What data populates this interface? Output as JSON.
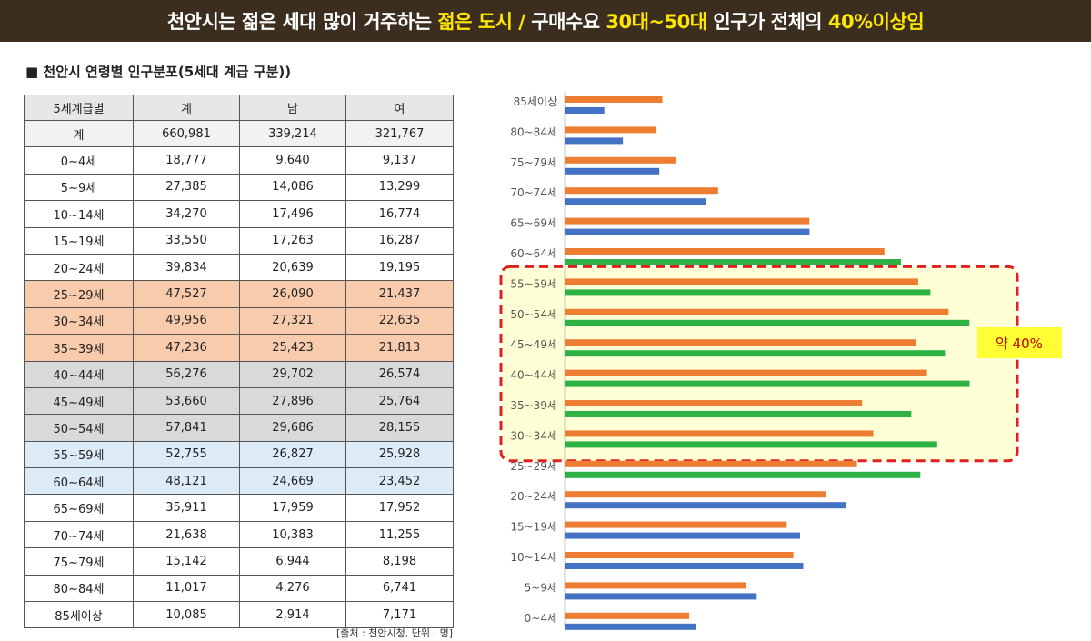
{
  "banner": {
    "parts": [
      {
        "text": "천안시는 젊은 세대 많이 거주하는 ",
        "color": "#ffffff"
      },
      {
        "text": "젊은 도시 / ",
        "color": "#ffe600"
      },
      {
        "text": "구매수요 ",
        "color": "#ffffff"
      },
      {
        "text": "30대~50대",
        "color": "#ffe600"
      },
      {
        "text": " 인구가 전체의 ",
        "color": "#ffffff"
      },
      {
        "text": "40%이상임",
        "color": "#ffe600"
      }
    ]
  },
  "subtitle": "■ 천안시 연령별 인구분포(5세대 계급 구분))",
  "table": {
    "headers": [
      "5세계급별",
      "계",
      "남",
      "여"
    ],
    "rows": [
      {
        "group": "total",
        "cells": [
          "계",
          "660,981",
          "339,214",
          "321,767"
        ]
      },
      {
        "group": "",
        "cells": [
          "0~4세",
          "18,777",
          "9,640",
          "9,137"
        ]
      },
      {
        "group": "",
        "cells": [
          "5~9세",
          "27,385",
          "14,086",
          "13,299"
        ]
      },
      {
        "group": "",
        "cells": [
          "10~14세",
          "34,270",
          "17,496",
          "16,774"
        ]
      },
      {
        "group": "",
        "cells": [
          "15~19세",
          "33,550",
          "17,263",
          "16,287"
        ]
      },
      {
        "group": "",
        "cells": [
          "20~24세",
          "39,834",
          "20,639",
          "19,195"
        ]
      },
      {
        "group": "orange",
        "cells": [
          "25~29세",
          "47,527",
          "26,090",
          "21,437"
        ]
      },
      {
        "group": "orange",
        "cells": [
          "30~34세",
          "49,956",
          "27,321",
          "22,635"
        ]
      },
      {
        "group": "orange",
        "cells": [
          "35~39세",
          "47,236",
          "25,423",
          "21,813"
        ]
      },
      {
        "group": "gray",
        "cells": [
          "40~44세",
          "56,276",
          "29,702",
          "26,574"
        ]
      },
      {
        "group": "gray",
        "cells": [
          "45~49세",
          "53,660",
          "27,896",
          "25,764"
        ]
      },
      {
        "group": "gray",
        "cells": [
          "50~54세",
          "57,841",
          "29,686",
          "28,155"
        ]
      },
      {
        "group": "blue",
        "cells": [
          "55~59세",
          "52,755",
          "26,827",
          "25,928"
        ]
      },
      {
        "group": "blue",
        "cells": [
          "60~64세",
          "48,121",
          "24,669",
          "23,452"
        ]
      },
      {
        "group": "",
        "cells": [
          "65~69세",
          "35,911",
          "17,959",
          "17,952"
        ]
      },
      {
        "group": "",
        "cells": [
          "70~74세",
          "21,638",
          "10,383",
          "11,255"
        ]
      },
      {
        "group": "",
        "cells": [
          "75~79세",
          "15,142",
          "6,944",
          "8,198"
        ]
      },
      {
        "group": "",
        "cells": [
          "80~84세",
          "11,017",
          "4,276",
          "6,741"
        ]
      },
      {
        "group": "",
        "cells": [
          "85세이상",
          "10,085",
          "2,914",
          "7,171"
        ]
      }
    ]
  },
  "source": "[출처 : 천안시청, 단위 : 명]",
  "chart_data": {
    "type": "bar",
    "orientation": "horizontal",
    "categories": [
      "85세이상",
      "80~84세",
      "75~79세",
      "70~74세",
      "65~69세",
      "60~64세",
      "55~59세",
      "50~54세",
      "45~49세",
      "40~44세",
      "35~39세",
      "30~34세",
      "25~29세",
      "20~24세",
      "15~19세",
      "10~14세",
      "5~9세",
      "0~4세"
    ],
    "series": [
      {
        "values": [
          7171,
          6741,
          8198,
          11255,
          17952,
          23452,
          25928,
          28155,
          25764,
          26574,
          21813,
          22635,
          21437,
          19195,
          16287,
          16774,
          13299,
          9137
        ],
        "color": "#ed7d31"
      },
      {
        "values": [
          2914,
          4276,
          6944,
          10383,
          17959,
          24669,
          26827,
          29686,
          27896,
          29702,
          25423,
          27321,
          26090,
          20639,
          17263,
          17496,
          14086,
          9640
        ],
        "colors": [
          "#4472c4",
          "#4472c4",
          "#4472c4",
          "#4472c4",
          "#4472c4",
          "#2fb245",
          "#2fb245",
          "#2fb245",
          "#2fb245",
          "#2fb245",
          "#2fb245",
          "#2fb245",
          "#2fb245",
          "#4472c4",
          "#4472c4",
          "#4472c4",
          "#4472c4",
          "#4472c4"
        ]
      }
    ],
    "xlim": [
      0,
      30000
    ],
    "highlight": {
      "label": "약 40%",
      "from": "55~59세",
      "to": "30~34세",
      "fill": "#ffffd5",
      "border": "#e02020",
      "label_bg": "#ffff33",
      "label_color": "#c00000"
    }
  }
}
